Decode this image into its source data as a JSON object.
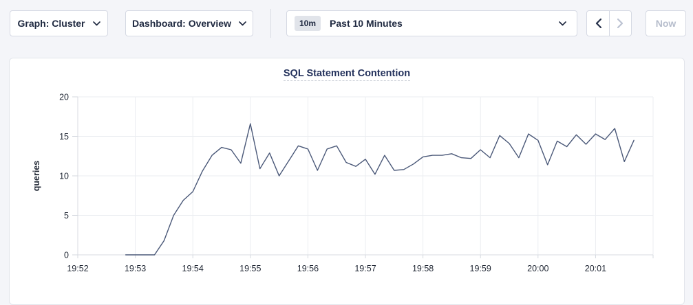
{
  "toolbar": {
    "graph_label": "Graph: Cluster",
    "dashboard_label": "Dashboard: Overview",
    "time_badge": "10m",
    "time_label": "Past 10 Minutes",
    "now_label": "Now"
  },
  "chart_data": {
    "type": "line",
    "title": "SQL Statement Contention",
    "xlabel": "",
    "ylabel": "queries",
    "ylim": [
      0,
      20
    ],
    "y_ticks": [
      0,
      5,
      10,
      15,
      20
    ],
    "x_domain": [
      "19:52:00",
      "20:02:00"
    ],
    "x_ticks": [
      "19:52",
      "19:53",
      "19:54",
      "19:55",
      "19:56",
      "19:57",
      "19:58",
      "19:59",
      "20:00",
      "20:01"
    ],
    "grid": true,
    "legend_position": "none",
    "line_color": "#4a5878",
    "series_name": "queries",
    "points": [
      [
        "19:52:50",
        0
      ],
      [
        "19:53:00",
        0
      ],
      [
        "19:53:10",
        0
      ],
      [
        "19:53:20",
        0
      ],
      [
        "19:53:30",
        1.8
      ],
      [
        "19:53:40",
        5
      ],
      [
        "19:53:50",
        6.9
      ],
      [
        "19:54:00",
        8
      ],
      [
        "19:54:10",
        10.6
      ],
      [
        "19:54:20",
        12.6
      ],
      [
        "19:54:30",
        13.6
      ],
      [
        "19:54:40",
        13.3
      ],
      [
        "19:54:50",
        11.6
      ],
      [
        "19:55:00",
        16.6
      ],
      [
        "19:55:10",
        10.9
      ],
      [
        "19:55:20",
        12.9
      ],
      [
        "19:55:30",
        10
      ],
      [
        "19:55:40",
        11.9
      ],
      [
        "19:55:50",
        13.8
      ],
      [
        "19:56:00",
        13.4
      ],
      [
        "19:56:10",
        10.7
      ],
      [
        "19:56:20",
        13.4
      ],
      [
        "19:56:30",
        13.8
      ],
      [
        "19:56:40",
        11.7
      ],
      [
        "19:56:50",
        11.2
      ],
      [
        "19:57:00",
        12.1
      ],
      [
        "19:57:10",
        10.2
      ],
      [
        "19:57:20",
        12.6
      ],
      [
        "19:57:30",
        10.7
      ],
      [
        "19:57:40",
        10.8
      ],
      [
        "19:57:50",
        11.5
      ],
      [
        "19:58:00",
        12.4
      ],
      [
        "19:58:10",
        12.6
      ],
      [
        "19:58:20",
        12.6
      ],
      [
        "19:58:30",
        12.8
      ],
      [
        "19:58:40",
        12.3
      ],
      [
        "19:58:50",
        12.2
      ],
      [
        "19:59:00",
        13.3
      ],
      [
        "19:59:10",
        12.3
      ],
      [
        "19:59:20",
        15.1
      ],
      [
        "19:59:30",
        14.1
      ],
      [
        "19:59:40",
        12.3
      ],
      [
        "19:59:50",
        15.3
      ],
      [
        "20:00:00",
        14.5
      ],
      [
        "20:00:10",
        11.4
      ],
      [
        "20:00:20",
        14.4
      ],
      [
        "20:00:30",
        13.7
      ],
      [
        "20:00:40",
        15.2
      ],
      [
        "20:00:50",
        14
      ],
      [
        "20:01:00",
        15.3
      ],
      [
        "20:01:10",
        14.6
      ],
      [
        "20:01:20",
        16
      ],
      [
        "20:01:30",
        11.8
      ],
      [
        "20:01:40",
        14.5
      ]
    ]
  }
}
